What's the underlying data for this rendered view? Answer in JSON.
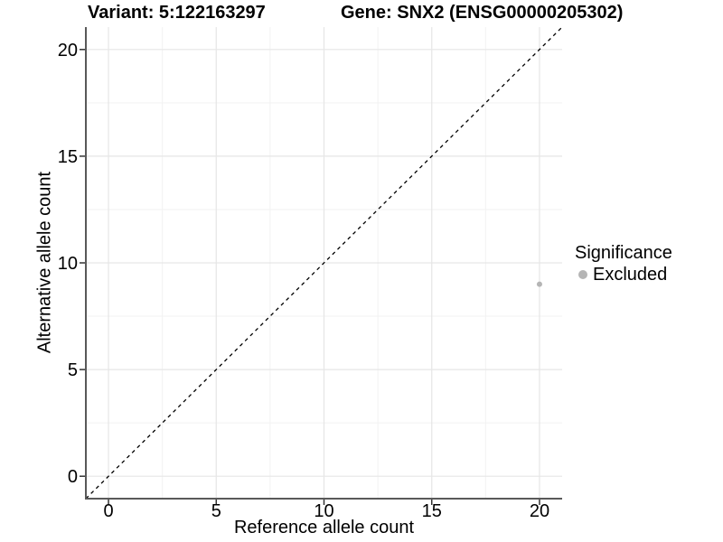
{
  "chart_data": {
    "type": "scatter",
    "title_left": "Variant: 5:122163297",
    "title_right": "Gene: SNX2 (ENSG00000205302)",
    "xlabel": "Reference allele count",
    "ylabel": "Alternative allele count",
    "xlim": [
      -1.05,
      21.05
    ],
    "ylim": [
      -1.05,
      21.05
    ],
    "x_ticks": [
      0,
      5,
      10,
      15,
      20
    ],
    "y_ticks": [
      0,
      5,
      10,
      15,
      20
    ],
    "x_minor_ticks": [
      2.5,
      7.5,
      12.5,
      17.5
    ],
    "y_minor_ticks": [
      2.5,
      7.5,
      12.5,
      17.5
    ],
    "grid": "major+minor",
    "reference_line": {
      "type": "identity",
      "equation": "y = x",
      "style": "dashed",
      "color": "#000000"
    },
    "series": [
      {
        "name": "Excluded",
        "color": "#b5b5b5",
        "points": [
          {
            "x": 20,
            "y": 9
          }
        ]
      }
    ],
    "legend": {
      "title": "Significance",
      "position": "right",
      "items": [
        {
          "label": "Excluded",
          "color": "#b5b5b5"
        }
      ]
    },
    "style": {
      "background": "#ffffff",
      "grid_major_color": "#e6e6e6",
      "grid_minor_color": "#f2f2f2",
      "axis_color": "#595959",
      "tick_color": "#333333",
      "point_radius": 3,
      "legend_dot_diameter": 10
    }
  }
}
